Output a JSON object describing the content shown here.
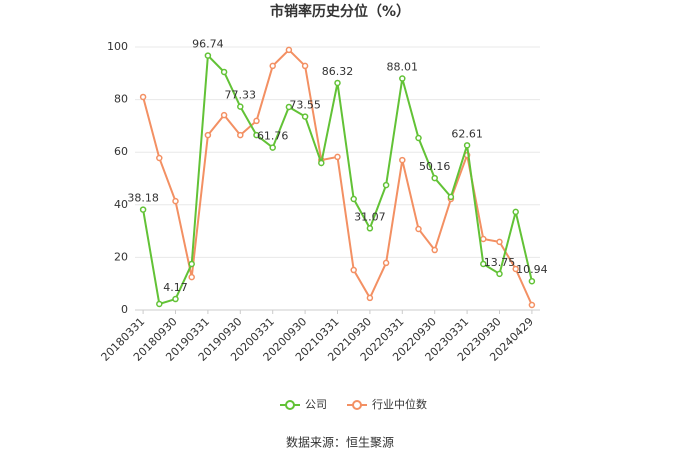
{
  "chart_data": {
    "type": "line",
    "title": "市销率历史分位（%）",
    "categories": [
      "20180331",
      null,
      "20180930",
      null,
      "20190331",
      null,
      "20190930",
      null,
      "20200331",
      null,
      "20200930",
      null,
      "20210331",
      null,
      "20210930",
      null,
      "20220331",
      null,
      "20220930",
      null,
      "20230331",
      null,
      "20230930",
      null,
      "20240429"
    ],
    "series": [
      {
        "name": "公司",
        "color": "#62c236",
        "values": [
          38.18,
          2.3,
          4.17,
          17.5,
          96.74,
          90.5,
          77.33,
          66.5,
          61.76,
          77.2,
          73.55,
          55.9,
          86.32,
          42.2,
          31.07,
          47.5,
          88.01,
          65.4,
          50.16,
          43,
          62.61,
          17.5,
          13.75,
          37.3,
          10.94
        ],
        "value_labels": [
          "38.18",
          null,
          "4.17",
          null,
          "96.74",
          null,
          "77.33",
          null,
          "61.76",
          null,
          "73.55",
          null,
          "86.32",
          null,
          "31.07",
          null,
          "88.01",
          null,
          "50.16",
          null,
          "62.61",
          null,
          "13.75",
          null,
          "10.94"
        ]
      },
      {
        "name": "行业中位数",
        "color": "#f39063",
        "values": [
          81,
          57.8,
          41.4,
          12.5,
          66.5,
          74.1,
          66.5,
          71.9,
          92.8,
          98.9,
          92.8,
          57,
          58.2,
          15.2,
          4.6,
          17.9,
          57,
          30.8,
          22.8,
          42.2,
          58.9,
          27,
          25.9,
          15.6,
          1.9
        ]
      }
    ],
    "ylim": [
      0,
      100
    ],
    "yticks": [
      0,
      20,
      40,
      60,
      80,
      100
    ],
    "grid": true,
    "source": "数据来源：恒生聚源"
  }
}
